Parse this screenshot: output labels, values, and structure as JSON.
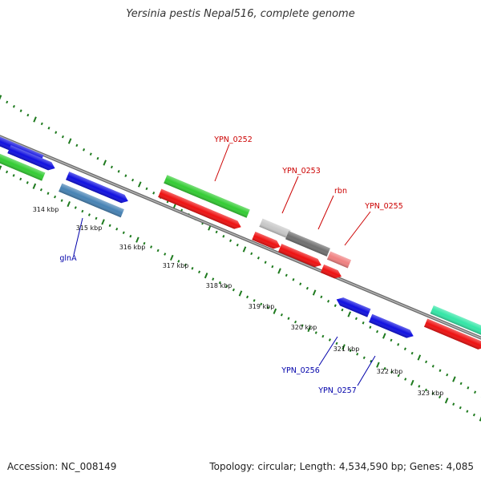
{
  "title": "Yersinia pestis Nepal516, complete genome",
  "footer": {
    "accession": "Accession: NC_008149",
    "summary": "Topology: circular; Length: 4,534,590 bp; Genes: 4,085"
  },
  "colors": {
    "backbone": "#8a8a8a",
    "ticks": "#1e7a1e",
    "label_red": "#cc0000",
    "label_blue": "#0000aa"
  },
  "scale_labels": [
    "314 kbp",
    "315 kbp",
    "316 kbp",
    "317 kbp",
    "318 kbp",
    "319 kbp",
    "320 kbp",
    "321 kbp",
    "322 kbp",
    "323 kbp"
  ],
  "gene_labels": [
    {
      "text": "YPN_0252",
      "color": "red"
    },
    {
      "text": "YPN_0253",
      "color": "red"
    },
    {
      "text": "rbn",
      "color": "red"
    },
    {
      "text": "YPN_0255",
      "color": "red"
    },
    {
      "text": "glnA",
      "color": "blue"
    },
    {
      "text": "YPN_0256",
      "color": "blue"
    },
    {
      "text": "YPN_0257",
      "color": "blue"
    }
  ],
  "features": [
    {
      "name": "feature-blue-left-1",
      "color": "#1010e0"
    },
    {
      "name": "feature-blue-left-2",
      "color": "#1010e0"
    },
    {
      "name": "feature-green-left",
      "color": "#33cc33"
    },
    {
      "name": "feature-blue-glnA-upper",
      "color": "#1010e0"
    },
    {
      "name": "feature-steelblue-glnA",
      "color": "#4682b4"
    },
    {
      "name": "feature-green-YPN_0252",
      "color": "#33cc33"
    },
    {
      "name": "feature-red-YPN_0252",
      "color": "#ee1111"
    },
    {
      "name": "feature-lightgray",
      "color": "#c8c8c8"
    },
    {
      "name": "feature-darkgray-rbn",
      "color": "#707070"
    },
    {
      "name": "feature-pink-YPN_0255",
      "color": "#f08080"
    },
    {
      "name": "feature-red-small-1",
      "color": "#ee1111"
    },
    {
      "name": "feature-red-YPN_0253",
      "color": "#ee1111"
    },
    {
      "name": "feature-red-small-2",
      "color": "#ee1111"
    },
    {
      "name": "feature-blue-YPN_0256",
      "color": "#1010e0"
    },
    {
      "name": "feature-blue-YPN_0257",
      "color": "#1010e0"
    },
    {
      "name": "feature-teal-right",
      "color": "#33e6a6"
    },
    {
      "name": "feature-red-right",
      "color": "#ee1111"
    }
  ]
}
